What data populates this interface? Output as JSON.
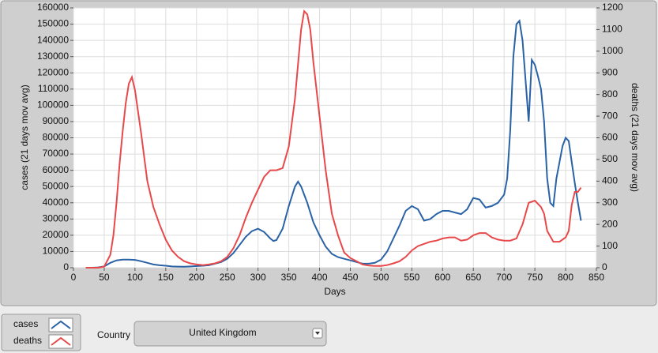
{
  "chart_data": {
    "type": "line",
    "xlabel": "Days",
    "ylabel": "cases  (21 days mov avg)",
    "y2label": "deaths  (21 days mov avg)",
    "xlim": [
      0,
      850
    ],
    "xticks": [
      0,
      50,
      100,
      150,
      200,
      250,
      300,
      350,
      400,
      450,
      500,
      550,
      600,
      650,
      700,
      750,
      800,
      850
    ],
    "ylim": [
      0,
      160000
    ],
    "yticks": [
      0,
      10000,
      20000,
      30000,
      40000,
      50000,
      60000,
      70000,
      80000,
      90000,
      100000,
      110000,
      120000,
      130000,
      140000,
      150000,
      160000
    ],
    "y2lim": [
      0,
      1200
    ],
    "y2ticks": [
      0,
      100,
      200,
      300,
      400,
      500,
      600,
      700,
      800,
      900,
      1000,
      1100,
      1200
    ],
    "grid": true,
    "series": [
      {
        "name": "cases",
        "color": "#2a62a6",
        "x": [
          20,
          30,
          40,
          50,
          60,
          70,
          80,
          90,
          100,
          110,
          120,
          130,
          140,
          150,
          160,
          170,
          180,
          190,
          200,
          210,
          220,
          230,
          240,
          250,
          260,
          270,
          280,
          290,
          300,
          310,
          320,
          325,
          330,
          340,
          350,
          360,
          365,
          370,
          380,
          390,
          400,
          410,
          420,
          430,
          440,
          450,
          460,
          470,
          480,
          490,
          500,
          510,
          520,
          530,
          540,
          550,
          560,
          570,
          580,
          590,
          600,
          610,
          620,
          630,
          640,
          650,
          660,
          670,
          680,
          690,
          700,
          705,
          710,
          715,
          720,
          725,
          730,
          735,
          740,
          745,
          750,
          755,
          760,
          765,
          770,
          775,
          780,
          785,
          790,
          795,
          800,
          805,
          810,
          815,
          820,
          825
        ],
        "values": [
          0,
          0,
          200,
          800,
          3000,
          4500,
          5000,
          5000,
          4800,
          4000,
          3000,
          2000,
          1500,
          1200,
          800,
          700,
          600,
          800,
          1000,
          1200,
          1500,
          2500,
          3500,
          5500,
          9000,
          14000,
          19000,
          22500,
          24000,
          22000,
          18000,
          16500,
          17000,
          24000,
          38000,
          50000,
          53000,
          50000,
          40000,
          28000,
          20000,
          13000,
          8500,
          6500,
          5500,
          4500,
          3500,
          2500,
          2500,
          3000,
          5000,
          10000,
          18000,
          26000,
          35000,
          38000,
          36000,
          29000,
          30000,
          33000,
          35000,
          35000,
          34000,
          33000,
          36000,
          43000,
          42000,
          37000,
          38000,
          40000,
          45000,
          55000,
          85000,
          130000,
          150000,
          152000,
          140000,
          115000,
          90000,
          128000,
          125000,
          118000,
          110000,
          90000,
          55000,
          40000,
          38000,
          55000,
          65000,
          75000,
          80000,
          78000,
          65000,
          52000,
          40000,
          29000
        ]
      },
      {
        "name": "deaths",
        "color": "#e8484a",
        "axis": "y2",
        "x": [
          20,
          30,
          40,
          50,
          60,
          65,
          70,
          75,
          80,
          85,
          90,
          95,
          100,
          105,
          110,
          115,
          120,
          130,
          140,
          150,
          160,
          170,
          180,
          190,
          200,
          210,
          220,
          230,
          240,
          250,
          260,
          270,
          280,
          290,
          300,
          310,
          320,
          330,
          340,
          350,
          360,
          370,
          375,
          380,
          385,
          390,
          400,
          410,
          420,
          430,
          440,
          450,
          460,
          470,
          480,
          490,
          500,
          510,
          520,
          530,
          540,
          550,
          560,
          570,
          580,
          590,
          600,
          610,
          620,
          630,
          640,
          650,
          660,
          670,
          680,
          690,
          700,
          710,
          720,
          730,
          740,
          750,
          760,
          765,
          770,
          780,
          790,
          800,
          805,
          810,
          815,
          820,
          825
        ],
        "values": [
          0,
          0,
          0,
          5,
          60,
          150,
          300,
          480,
          630,
          760,
          850,
          880,
          820,
          720,
          620,
          510,
          400,
          280,
          200,
          130,
          80,
          50,
          30,
          20,
          15,
          12,
          15,
          20,
          30,
          50,
          90,
          150,
          230,
          300,
          360,
          420,
          450,
          450,
          460,
          560,
          780,
          1100,
          1185,
          1170,
          1100,
          950,
          700,
          450,
          250,
          150,
          70,
          45,
          30,
          15,
          10,
          8,
          8,
          12,
          20,
          30,
          50,
          80,
          100,
          110,
          120,
          125,
          135,
          140,
          140,
          125,
          130,
          150,
          160,
          160,
          140,
          130,
          125,
          125,
          135,
          200,
          300,
          310,
          280,
          250,
          170,
          120,
          120,
          140,
          170,
          290,
          350,
          350,
          370
        ]
      }
    ]
  },
  "controls": {
    "country_label": "Country",
    "country": "United Kingdom"
  }
}
